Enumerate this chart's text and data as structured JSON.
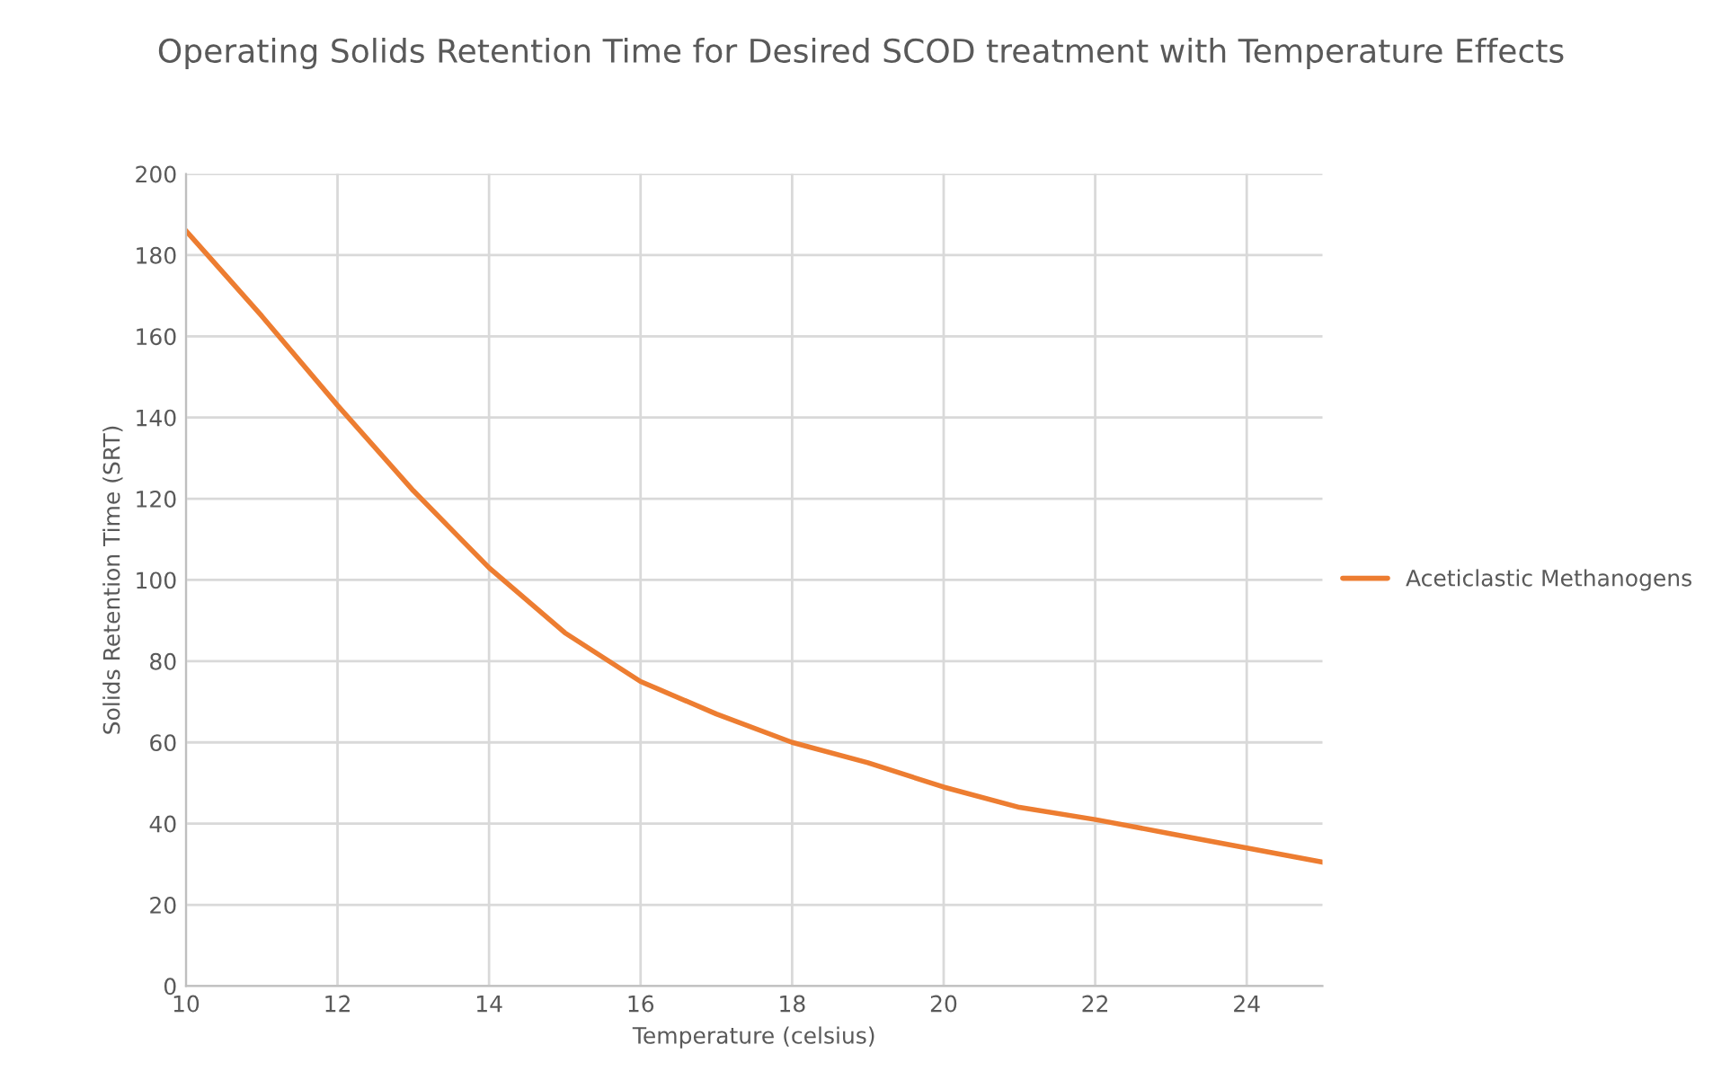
{
  "chart_data": {
    "type": "line",
    "title": "Operating Solids Retention Time for Desired SCOD treatment with Temperature Effects",
    "xlabel": "Temperature (celsius)",
    "ylabel": "Solids Retention Time (SRT)",
    "x": [
      10,
      11,
      12,
      13,
      14,
      15,
      16,
      17,
      18,
      19,
      20,
      21,
      22,
      23,
      24,
      25
    ],
    "series": [
      {
        "name": "Aceticlastic Methanogens",
        "color": "#ed7d31",
        "values": [
          186,
          165,
          143,
          122,
          103,
          87,
          75,
          67,
          60,
          55,
          49,
          44,
          41,
          37.5,
          34,
          30.5
        ]
      }
    ],
    "xlim": [
      10,
      25
    ],
    "xticks": [
      10,
      12,
      14,
      16,
      18,
      20,
      22,
      24
    ],
    "ylim": [
      0,
      200
    ],
    "yticks": [
      0,
      20,
      40,
      60,
      80,
      100,
      120,
      140,
      160,
      180,
      200
    ],
    "grid": true,
    "legend": "right",
    "marker": "none",
    "line_style": "solid"
  }
}
